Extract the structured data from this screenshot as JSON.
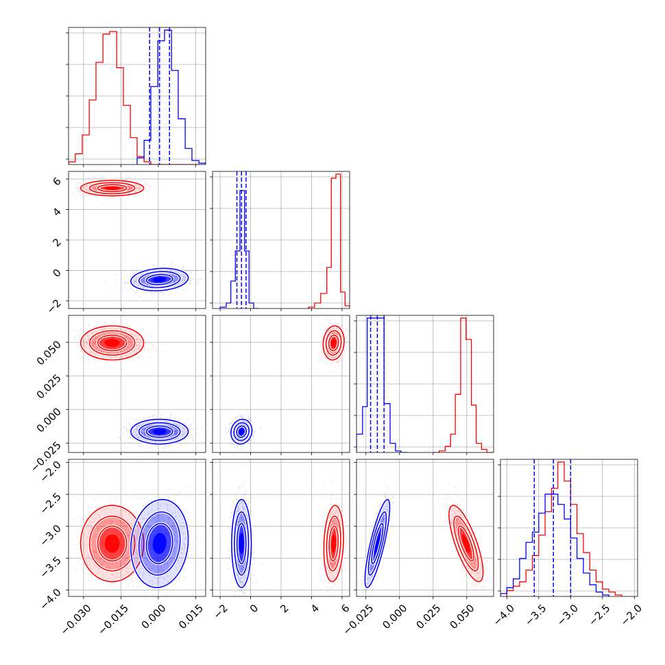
{
  "chart_data": {
    "type": "corner",
    "series": [
      {
        "name": "",
        "color": "#ff0000"
      },
      {
        "name": "",
        "color": "#0000ff"
      }
    ],
    "parameters": [
      {
        "range": [
          -0.036,
          0.019
        ],
        "ticks": [
          "-0.030",
          "-0.015",
          "0.000",
          "0.015"
        ],
        "tick_values": [
          -0.03,
          -0.015,
          0.0,
          0.015
        ],
        "quantiles": [
          -0.0035,
          0.0005,
          0.0045
        ]
      },
      {
        "range": [
          -2.5,
          6.5
        ],
        "ticks": [
          "-2",
          "0",
          "2",
          "4",
          "6"
        ],
        "tick_values": [
          -2,
          0,
          2,
          4,
          6
        ],
        "quantiles": [
          -0.9,
          -0.6,
          -0.3
        ]
      },
      {
        "range": [
          -0.032,
          0.07
        ],
        "ticks": [
          "-0.025",
          "0.000",
          "0.025",
          "0.050"
        ],
        "tick_values": [
          -0.025,
          0.0,
          0.025,
          0.05
        ],
        "quantiles": [
          -0.0215,
          -0.0165,
          -0.0115
        ]
      },
      {
        "range": [
          -4.1,
          -1.95
        ],
        "ticks": [
          "-4.0",
          "-3.5",
          "-3.0",
          "-2.5",
          "-2.0"
        ],
        "tick_values": [
          -4.0,
          -3.5,
          -3.0,
          -2.5,
          -2.0
        ],
        "quantiles": [
          -3.57,
          -3.27,
          -3.0
        ]
      }
    ],
    "histograms": {
      "p0": {
        "red": {
          "edges": [
            -0.036,
            -0.0333,
            -0.0305,
            -0.0277,
            -0.025,
            -0.0222,
            -0.0195,
            -0.0167,
            -0.014,
            -0.0112,
            -0.0085,
            -0.0057,
            -0.003,
            -0.0002,
            0.0025,
            0.0053,
            0.008,
            0.0108,
            0.0135,
            0.0163
          ],
          "counts": [
            0.02,
            0.08,
            0.22,
            0.48,
            0.76,
            0.97,
            0.99,
            0.72,
            0.44,
            0.2,
            0.06,
            0.02,
            0.0,
            0.0,
            0.0,
            0.0,
            0.0,
            0.0,
            0.0
          ]
        },
        "blue": {
          "edges": [
            -0.0085,
            -0.0057,
            -0.003,
            -0.0002,
            0.0025,
            0.0053,
            0.008,
            0.0108,
            0.0135,
            0.0163,
            0.019
          ],
          "counts": [
            0.05,
            0.18,
            0.58,
            0.92,
            1.0,
            0.7,
            0.34,
            0.12,
            0.03,
            0.01
          ]
        }
      },
      "p1": {
        "red": {
          "edges": [
            3.8,
            4.2,
            4.6,
            5.0,
            5.3,
            5.6,
            5.9,
            6.2,
            6.5
          ],
          "counts": [
            0.01,
            0.04,
            0.11,
            0.3,
            0.95,
            0.98,
            0.12,
            0.02
          ]
        },
        "blue": {
          "edges": [
            -2.0,
            -1.6,
            -1.3,
            -1.0,
            -0.7,
            -0.4,
            -0.1,
            0.2,
            0.5
          ],
          "counts": [
            0.01,
            0.04,
            0.2,
            0.42,
            0.86,
            0.42,
            0.04,
            0.0
          ]
        }
      },
      "p2": {
        "red": {
          "edges": [
            0.025,
            0.0295,
            0.034,
            0.038,
            0.0415,
            0.0455,
            0.0495,
            0.0535,
            0.057,
            0.061,
            0.065,
            0.07
          ],
          "counts": [
            0.0,
            0.01,
            0.04,
            0.12,
            0.38,
            0.88,
            0.74,
            0.31,
            0.06,
            0.02,
            0.0
          ]
        },
        "blue": {
          "edges": [
            -0.032,
            -0.0275,
            -0.024,
            -0.02,
            -0.016,
            -0.0115,
            -0.007,
            -0.003,
            0.001,
            0.006
          ],
          "counts": [
            0.12,
            0.3,
            0.88,
            0.88,
            0.88,
            0.32,
            0.06,
            0.01,
            0.0
          ]
        }
      },
      "p3": {
        "red": {
          "edges": [
            -4.0,
            -3.9,
            -3.8,
            -3.7,
            -3.6,
            -3.5,
            -3.4,
            -3.3,
            -3.2,
            -3.1,
            -3.0,
            -2.9,
            -2.8,
            -2.7,
            -2.6,
            -2.5,
            -2.4,
            -2.3,
            -2.2
          ],
          "counts": [
            0.04,
            0.07,
            0.1,
            0.18,
            0.28,
            0.42,
            0.58,
            0.74,
            0.92,
            0.79,
            0.63,
            0.43,
            0.3,
            0.18,
            0.1,
            0.05,
            0.03,
            0.01
          ]
        },
        "blue": {
          "edges": [
            -4.1,
            -4.0,
            -3.9,
            -3.8,
            -3.7,
            -3.6,
            -3.5,
            -3.4,
            -3.3,
            -3.2,
            -3.1,
            -3.0,
            -2.9,
            -2.8,
            -2.7,
            -2.6,
            -2.5,
            -2.4
          ],
          "counts": [
            0.02,
            0.06,
            0.12,
            0.26,
            0.37,
            0.44,
            0.57,
            0.7,
            0.7,
            0.63,
            0.53,
            0.4,
            0.26,
            0.16,
            0.08,
            0.03,
            0.01
          ]
        }
      }
    },
    "blobs": {
      "1_0": [
        {
          "series": "red",
          "cx": -0.0185,
          "cy": 5.4,
          "sx": 0.0055,
          "sy": 0.22,
          "rho": 0.0
        },
        {
          "series": "blue",
          "cx": 0.0005,
          "cy": -0.6,
          "sx": 0.005,
          "sy": 0.32,
          "rho": 0.15
        }
      ],
      "2_0": [
        {
          "series": "red",
          "cx": -0.0185,
          "cy": 0.0495,
          "sx": 0.0055,
          "sy": 0.0055,
          "rho": 0.0
        },
        {
          "series": "blue",
          "cx": 0.0005,
          "cy": -0.0165,
          "sx": 0.005,
          "sy": 0.004,
          "rho": 0.0
        }
      ],
      "2_1": [
        {
          "series": "red",
          "cx": 5.45,
          "cy": 0.0495,
          "sx": 0.3,
          "sy": 0.0055,
          "rho": 0.1
        },
        {
          "series": "blue",
          "cx": -0.6,
          "cy": -0.0165,
          "sx": 0.3,
          "sy": 0.004,
          "rho": 0.1
        }
      ],
      "3_0": [
        {
          "series": "red",
          "cx": -0.0185,
          "cy": -3.27,
          "sx": 0.0055,
          "sy": 0.26,
          "rho": 0.0
        },
        {
          "series": "blue",
          "cx": 0.0005,
          "cy": -3.27,
          "sx": 0.005,
          "sy": 0.3,
          "rho": 0.1
        }
      ],
      "3_1": [
        {
          "series": "red",
          "cx": 5.45,
          "cy": -3.27,
          "sx": 0.28,
          "sy": 0.26,
          "rho": 0.15
        },
        {
          "series": "blue",
          "cx": -0.6,
          "cy": -3.27,
          "sx": 0.28,
          "sy": 0.3,
          "rho": 0.0
        }
      ],
      "3_2": [
        {
          "series": "red",
          "cx": 0.0495,
          "cy": -3.27,
          "sx": 0.0055,
          "sy": 0.26,
          "rho": -0.75
        },
        {
          "series": "blue",
          "cx": -0.0165,
          "cy": -3.27,
          "sx": 0.004,
          "sy": 0.3,
          "rho": 0.82
        }
      ]
    },
    "grid": true,
    "legend": "none"
  }
}
